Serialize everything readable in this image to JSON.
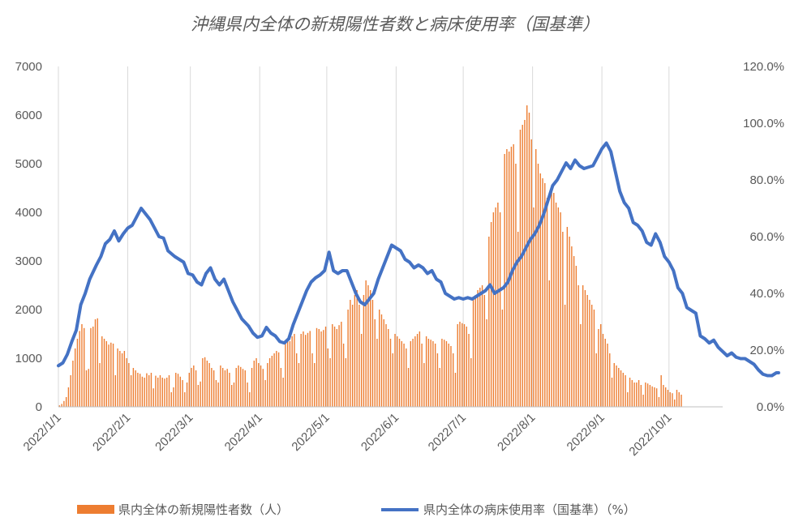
{
  "chart_data": {
    "type": "bar+line",
    "title": "沖縄県内全体の新規陽性者数と病床使用率（国基準）",
    "x_ticks": [
      "2022/1/1",
      "2022/2/1",
      "2022/3/1",
      "2022/4/1",
      "2022/5/1",
      "2022/6/1",
      "2022/7/1",
      "2022/8/1",
      "2022/9/1",
      "2022/10/1"
    ],
    "y_left": {
      "min": 0,
      "max": 7000,
      "step": 1000,
      "ticks": [
        "0",
        "1000",
        "2000",
        "3000",
        "4000",
        "5000",
        "6000",
        "7000"
      ]
    },
    "y_right": {
      "min": 0,
      "max": 120,
      "step": 20,
      "ticks": [
        "0.0%",
        "20.0%",
        "40.0%",
        "60.0%",
        "80.0%",
        "100.0%",
        "120.0%"
      ]
    },
    "grid": "vertical",
    "legend": "bottom",
    "colors": {
      "bars": "#ed7d31",
      "line": "#4472c4"
    },
    "series": [
      {
        "name": "県内全体の新規陽性者数（人）",
        "type": "bar",
        "axis": "left",
        "start_date": "2022-01-01",
        "values": [
          30,
          60,
          120,
          200,
          400,
          650,
          950,
          1200,
          1400,
          1560,
          1700,
          1620,
          750,
          780,
          1620,
          1650,
          1800,
          1820,
          900,
          1450,
          1400,
          1350,
          1280,
          1320,
          1300,
          650,
          1200,
          1150,
          1100,
          1150,
          1000,
          900,
          650,
          800,
          750,
          700,
          680,
          620,
          600,
          690,
          650,
          700,
          380,
          640,
          600,
          650,
          600,
          580,
          600,
          650,
          300,
          400,
          700,
          680,
          620,
          550,
          300,
          500,
          700,
          800,
          850,
          750,
          450,
          520,
          1000,
          1020,
          950,
          900,
          800,
          750,
          550,
          500,
          850,
          800,
          750,
          780,
          700,
          450,
          500,
          800,
          850,
          820,
          780,
          750,
          500,
          300,
          800,
          950,
          1000,
          900,
          850,
          780,
          550,
          900,
          1000,
          1050,
          1100,
          1150,
          1120,
          800,
          600,
          1300,
          1400,
          1350,
          1450,
          1500,
          1100,
          900,
          1500,
          1550,
          1480,
          1520,
          1560,
          1100,
          900,
          1620,
          1600,
          1550,
          1580,
          1650,
          1200,
          1000,
          1700,
          1650,
          1600,
          1680,
          1750,
          1300,
          1000,
          2000,
          2200,
          2100,
          2300,
          2400,
          2100,
          1500,
          2300,
          2600,
          2500,
          2400,
          2200,
          1800,
          1400,
          2000,
          1900,
          1800,
          1700,
          1600,
          1400,
          1100,
          1500,
          1450,
          1400,
          1350,
          1300,
          1200,
          800,
          1350,
          1400,
          1450,
          1500,
          1550,
          1300,
          900,
          1450,
          1400,
          1380,
          1350,
          1300,
          1100,
          800,
          1400,
          1380,
          1350,
          1300,
          1250,
          1100,
          700,
          1700,
          1750,
          1720,
          1700,
          1650,
          1500,
          1000,
          2200,
          2300,
          2400,
          2450,
          2500,
          2300,
          1800,
          3500,
          3800,
          4000,
          4100,
          4200,
          4000,
          2000,
          5200,
          5300,
          5250,
          5350,
          5400,
          5000,
          3600,
          5700,
          5800,
          5900,
          6200,
          6050,
          5500,
          4100,
          5300,
          5000,
          4800,
          4700,
          4600,
          4300,
          2600,
          4500,
          4400,
          4200,
          4100,
          4000,
          3600,
          2100,
          3700,
          3500,
          3300,
          3100,
          2900,
          2500,
          1700,
          2500,
          2400,
          2300,
          2200,
          2100,
          2000,
          1100,
          1600,
          1700,
          1500,
          1400,
          1300,
          1100,
          600,
          900,
          850,
          800,
          750,
          700,
          650,
          300,
          600,
          550,
          500,
          500,
          550,
          450,
          250,
          500,
          480,
          450,
          420,
          400,
          380,
          200,
          650,
          450,
          400,
          350,
          300,
          280,
          150,
          350,
          300,
          250
        ]
      },
      {
        "name": "県内全体の病床使用率（国基準）（%）",
        "type": "line",
        "axis": "right",
        "start_date": "2022-01-01",
        "points": [
          [
            0,
            14.5
          ],
          [
            2,
            15.5
          ],
          [
            4,
            18.5
          ],
          [
            6,
            23
          ],
          [
            8,
            27
          ],
          [
            10,
            36
          ],
          [
            12,
            40
          ],
          [
            14,
            45
          ],
          [
            17,
            50
          ],
          [
            19,
            53
          ],
          [
            21,
            57.5
          ],
          [
            23,
            59
          ],
          [
            25,
            62
          ],
          [
            27,
            58.5
          ],
          [
            29,
            61
          ],
          [
            31,
            63
          ],
          [
            33,
            64
          ],
          [
            35,
            67
          ],
          [
            37,
            70
          ],
          [
            39,
            68
          ],
          [
            41,
            66
          ],
          [
            43,
            63
          ],
          [
            45,
            60
          ],
          [
            47,
            59.5
          ],
          [
            49,
            55
          ],
          [
            52,
            53
          ],
          [
            54,
            52
          ],
          [
            56,
            51
          ],
          [
            58,
            47
          ],
          [
            60,
            46.5
          ],
          [
            62,
            44
          ],
          [
            64,
            43
          ],
          [
            66,
            47
          ],
          [
            68,
            49
          ],
          [
            70,
            45
          ],
          [
            72,
            43
          ],
          [
            74,
            45
          ],
          [
            76,
            41
          ],
          [
            78,
            37
          ],
          [
            80,
            34
          ],
          [
            82,
            31
          ],
          [
            85,
            28.5
          ],
          [
            87,
            26
          ],
          [
            89,
            24.5
          ],
          [
            91,
            25
          ],
          [
            93,
            28
          ],
          [
            95,
            26
          ],
          [
            97,
            25
          ],
          [
            99,
            23
          ],
          [
            101,
            22.5
          ],
          [
            103,
            24
          ],
          [
            105,
            29
          ],
          [
            107,
            33
          ],
          [
            109,
            37
          ],
          [
            111,
            41
          ],
          [
            113,
            44
          ],
          [
            115,
            45.5
          ],
          [
            117,
            46.5
          ],
          [
            119,
            48
          ],
          [
            121,
            54.5
          ],
          [
            123,
            48
          ],
          [
            125,
            47
          ],
          [
            127,
            48
          ],
          [
            129,
            48
          ],
          [
            131,
            44
          ],
          [
            133,
            40
          ],
          [
            135,
            37
          ],
          [
            137,
            36
          ],
          [
            139,
            38
          ],
          [
            141,
            40
          ],
          [
            143,
            45
          ],
          [
            145,
            49
          ],
          [
            147,
            53
          ],
          [
            149,
            57
          ],
          [
            151,
            56
          ],
          [
            153,
            55
          ],
          [
            155,
            52
          ],
          [
            157,
            51
          ],
          [
            159,
            49
          ],
          [
            161,
            50
          ],
          [
            163,
            49
          ],
          [
            165,
            47
          ],
          [
            167,
            48
          ],
          [
            169,
            45
          ],
          [
            171,
            44
          ],
          [
            173,
            40
          ],
          [
            175,
            39
          ],
          [
            177,
            38
          ],
          [
            179,
            38.5
          ],
          [
            181,
            38
          ],
          [
            183,
            38.5
          ],
          [
            185,
            38
          ],
          [
            187,
            39
          ],
          [
            189,
            40
          ],
          [
            191,
            41
          ],
          [
            193,
            43
          ],
          [
            195,
            40
          ],
          [
            197,
            41
          ],
          [
            199,
            42
          ],
          [
            201,
            44
          ],
          [
            203,
            48
          ],
          [
            205,
            51
          ],
          [
            207,
            53
          ],
          [
            209,
            56
          ],
          [
            211,
            59
          ],
          [
            213,
            61
          ],
          [
            215,
            64
          ],
          [
            217,
            68
          ],
          [
            219,
            73
          ],
          [
            221,
            78
          ],
          [
            223,
            80
          ],
          [
            225,
            83
          ],
          [
            227,
            86
          ],
          [
            229,
            84
          ],
          [
            231,
            87
          ],
          [
            233,
            85
          ],
          [
            235,
            84
          ],
          [
            237,
            84.5
          ],
          [
            239,
            85
          ],
          [
            241,
            88
          ],
          [
            243,
            91
          ],
          [
            245,
            93
          ],
          [
            247,
            90
          ],
          [
            249,
            83
          ],
          [
            251,
            76
          ],
          [
            253,
            72
          ],
          [
            255,
            70
          ],
          [
            257,
            65
          ],
          [
            259,
            64
          ],
          [
            261,
            62
          ],
          [
            263,
            58
          ],
          [
            265,
            57
          ],
          [
            267,
            61
          ],
          [
            269,
            58
          ],
          [
            271,
            53
          ],
          [
            273,
            51
          ],
          [
            275,
            48
          ],
          [
            277,
            42
          ],
          [
            279,
            40
          ],
          [
            281,
            35
          ],
          [
            283,
            34
          ],
          [
            285,
            33
          ],
          [
            287,
            25
          ],
          [
            289,
            24
          ],
          [
            291,
            22.5
          ],
          [
            293,
            23.5
          ],
          [
            295,
            21
          ],
          [
            297,
            19.5
          ],
          [
            299,
            18
          ],
          [
            301,
            19
          ],
          [
            303,
            17.5
          ],
          [
            305,
            17
          ],
          [
            307,
            17
          ],
          [
            309,
            16
          ],
          [
            311,
            15
          ],
          [
            313,
            13
          ],
          [
            315,
            11.5
          ],
          [
            317,
            11
          ],
          [
            319,
            11
          ],
          [
            321,
            12
          ],
          [
            322,
            12
          ]
        ]
      }
    ]
  }
}
